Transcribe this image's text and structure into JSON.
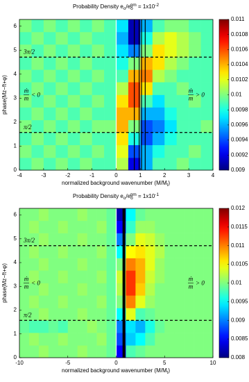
{
  "chart_data": [
    {
      "type": "heatmap",
      "title": [
        "Probability Density e",
        "o",
        "/e",
        "o",
        "gm",
        " = 1x10",
        "-2"
      ],
      "x_label": [
        "normalized background wavenumber (M/M",
        "t",
        ")"
      ],
      "y_label": "phase(Mz−ft+φ)",
      "colormap": "jet",
      "xlim": [
        -4,
        4
      ],
      "xticks": [
        -4,
        -3,
        -2,
        -1,
        0,
        1,
        2,
        3,
        4
      ],
      "ylim": [
        0,
        6.28
      ],
      "yticks": [
        0,
        1,
        2,
        3,
        4,
        5,
        6
      ],
      "clim": [
        0.009,
        0.011
      ],
      "cticks": [
        0.009,
        0.0092,
        0.0094,
        0.0096,
        0.0098,
        0.01,
        0.0102,
        0.0104,
        0.0106,
        0.0108,
        0.011
      ],
      "x_edges": [
        -4,
        -3.5,
        -3,
        -2.5,
        -2,
        -1.5,
        -1,
        -0.5,
        0,
        0.5,
        1,
        1.5,
        2,
        2.5,
        3,
        3.5,
        4
      ],
      "y_edges": [
        0,
        0.52,
        1.05,
        1.57,
        2.09,
        2.62,
        3.14,
        3.67,
        4.19,
        4.71,
        5.24,
        5.76,
        6.28
      ],
      "z": [
        [
          0.0099,
          0.01,
          0.0099,
          0.01,
          0.0099,
          0.01,
          0.0099,
          0.0099,
          0.0101,
          0.0092,
          0.0096,
          0.0099,
          0.0099,
          0.01,
          0.0099,
          0.0099
        ],
        [
          0.01,
          0.0099,
          0.01,
          0.0099,
          0.01,
          0.0099,
          0.01,
          0.0099,
          0.0102,
          0.0094,
          0.0096,
          0.0098,
          0.0099,
          0.0099,
          0.01,
          0.0099
        ],
        [
          0.0099,
          0.01,
          0.0099,
          0.01,
          0.0099,
          0.01,
          0.0099,
          0.0099,
          0.0103,
          0.0098,
          0.0094,
          0.0096,
          0.0098,
          0.0099,
          0.0099,
          0.0099
        ],
        [
          0.01,
          0.0099,
          0.01,
          0.0099,
          0.01,
          0.0099,
          0.01,
          0.01,
          0.0104,
          0.01,
          0.0094,
          0.0095,
          0.0097,
          0.0099,
          0.0099,
          0.01
        ],
        [
          0.0099,
          0.01,
          0.0099,
          0.01,
          0.0099,
          0.01,
          0.0099,
          0.0099,
          0.0104,
          0.0104,
          0.0096,
          0.0096,
          0.0098,
          0.0099,
          0.0099,
          0.0099
        ],
        [
          0.01,
          0.0099,
          0.01,
          0.0099,
          0.01,
          0.0099,
          0.01,
          0.0099,
          0.0103,
          0.0106,
          0.0099,
          0.0097,
          0.0099,
          0.0099,
          0.01,
          0.0099
        ],
        [
          0.0099,
          0.01,
          0.0099,
          0.01,
          0.0099,
          0.01,
          0.0099,
          0.0099,
          0.0101,
          0.0106,
          0.0103,
          0.0099,
          0.0099,
          0.01,
          0.0099,
          0.0099
        ],
        [
          0.01,
          0.0099,
          0.01,
          0.0099,
          0.01,
          0.0099,
          0.01,
          0.0099,
          0.0099,
          0.0104,
          0.0105,
          0.0101,
          0.01,
          0.0099,
          0.0099,
          0.0099
        ],
        [
          0.0099,
          0.01,
          0.0099,
          0.01,
          0.0099,
          0.01,
          0.0099,
          0.0099,
          0.0098,
          0.01,
          0.0104,
          0.0103,
          0.0101,
          0.01,
          0.0099,
          0.0099
        ],
        [
          0.01,
          0.0099,
          0.01,
          0.0099,
          0.01,
          0.0099,
          0.01,
          0.0099,
          0.0097,
          0.0095,
          0.01,
          0.0103,
          0.0102,
          0.0101,
          0.01,
          0.0099
        ],
        [
          0.0099,
          0.01,
          0.0099,
          0.01,
          0.0099,
          0.01,
          0.0099,
          0.0099,
          0.0096,
          0.0091,
          0.0098,
          0.0101,
          0.0102,
          0.0101,
          0.01,
          0.0099
        ],
        [
          0.01,
          0.0099,
          0.01,
          0.0099,
          0.01,
          0.0099,
          0.01,
          0.0099,
          0.0097,
          0.0091,
          0.0096,
          0.0099,
          0.01,
          0.01,
          0.0099,
          0.0099
        ]
      ],
      "vlines": [
        {
          "value": 0,
          "color": "#ffffff"
        },
        {
          "value": 0.75,
          "color": "#000000"
        },
        {
          "value": 0.95,
          "color": "#000000"
        },
        {
          "value": 1.05,
          "color": "#000000"
        },
        {
          "value": 1.2,
          "color": "#000000"
        }
      ],
      "hlines": [
        {
          "value": 4.71,
          "label": "3π/2"
        },
        {
          "value": 1.57,
          "label": "π/2"
        }
      ],
      "annotations": [
        {
          "num": "ṁ",
          "den": "m",
          "rel": "< 0"
        },
        {
          "num": "ṁ",
          "den": "m",
          "rel": "> 0"
        }
      ]
    },
    {
      "type": "heatmap",
      "title": [
        "Probability Density e",
        "o",
        "/e",
        "o",
        "gm",
        " = 1x10",
        "-1"
      ],
      "x_label": [
        "normalized background wavenumber (M/M",
        "t",
        ")"
      ],
      "y_label": "phase(Mz−ft+φ)",
      "colormap": "jet",
      "xlim": [
        -10,
        10
      ],
      "xticks": [
        -10,
        -5,
        0,
        5,
        10
      ],
      "ylim": [
        0,
        6.28
      ],
      "yticks": [
        0,
        1,
        2,
        3,
        4,
        5,
        6
      ],
      "clim": [
        0.008,
        0.012
      ],
      "cticks": [
        0.008,
        0.0085,
        0.009,
        0.0095,
        0.01,
        0.0105,
        0.011,
        0.0115,
        0.012
      ],
      "x_edges": [
        -10,
        -9,
        -8,
        -7,
        -6,
        -5,
        -4,
        -3,
        -2,
        -1,
        0,
        1,
        2,
        3,
        4,
        5,
        6,
        7,
        8,
        9,
        10
      ],
      "y_edges": [
        0,
        0.52,
        1.05,
        1.57,
        2.09,
        2.62,
        3.14,
        3.67,
        4.19,
        4.71,
        5.24,
        5.76,
        6.28
      ],
      "z": [
        [
          0.01,
          0.01,
          0.0101,
          0.01,
          0.01,
          0.01,
          0.0101,
          0.01,
          0.01,
          0.0099,
          0.0085,
          0.0098,
          0.0099,
          0.01,
          0.01,
          0.01,
          0.01,
          0.01,
          0.01,
          0.01
        ],
        [
          0.01,
          0.0101,
          0.01,
          0.01,
          0.0101,
          0.01,
          0.01,
          0.01,
          0.0101,
          0.0099,
          0.0088,
          0.0093,
          0.0095,
          0.0098,
          0.01,
          0.01,
          0.01,
          0.01,
          0.01,
          0.01
        ],
        [
          0.0099,
          0.0098,
          0.0098,
          0.0099,
          0.0098,
          0.01,
          0.01,
          0.0101,
          0.01,
          0.0099,
          0.009,
          0.0094,
          0.0092,
          0.0096,
          0.0099,
          0.01,
          0.01,
          0.01,
          0.01,
          0.01
        ],
        [
          0.01,
          0.01,
          0.0101,
          0.01,
          0.01,
          0.01,
          0.0101,
          0.01,
          0.01,
          0.0099,
          0.0095,
          0.0104,
          0.0098,
          0.0099,
          0.01,
          0.01,
          0.01,
          0.01,
          0.01,
          0.01
        ],
        [
          0.01,
          0.0101,
          0.01,
          0.01,
          0.0101,
          0.01,
          0.01,
          0.01,
          0.0101,
          0.0099,
          0.01,
          0.011,
          0.0104,
          0.0101,
          0.01,
          0.01,
          0.01,
          0.01,
          0.01,
          0.01
        ],
        [
          0.01,
          0.01,
          0.0101,
          0.01,
          0.01,
          0.01,
          0.0101,
          0.01,
          0.01,
          0.0099,
          0.0102,
          0.0113,
          0.0107,
          0.0102,
          0.01,
          0.01,
          0.01,
          0.01,
          0.01,
          0.01
        ],
        [
          0.01,
          0.0101,
          0.01,
          0.01,
          0.0101,
          0.01,
          0.01,
          0.01,
          0.0101,
          0.0099,
          0.0103,
          0.0113,
          0.0108,
          0.0103,
          0.0101,
          0.01,
          0.01,
          0.01,
          0.01,
          0.01
        ],
        [
          0.01,
          0.01,
          0.0101,
          0.01,
          0.01,
          0.01,
          0.0101,
          0.01,
          0.01,
          0.0099,
          0.01,
          0.011,
          0.0108,
          0.0104,
          0.0101,
          0.01,
          0.01,
          0.01,
          0.01,
          0.01
        ],
        [
          0.01,
          0.0101,
          0.01,
          0.01,
          0.0101,
          0.01,
          0.01,
          0.01,
          0.0101,
          0.0099,
          0.0095,
          0.0105,
          0.0106,
          0.0104,
          0.0102,
          0.01,
          0.01,
          0.01,
          0.01,
          0.01
        ],
        [
          0.01,
          0.01,
          0.0101,
          0.01,
          0.01,
          0.01,
          0.0101,
          0.01,
          0.01,
          0.0099,
          0.009,
          0.01,
          0.0104,
          0.0103,
          0.0101,
          0.01,
          0.01,
          0.01,
          0.01,
          0.01
        ],
        [
          0.01,
          0.0101,
          0.01,
          0.01,
          0.0101,
          0.01,
          0.01,
          0.01,
          0.0101,
          0.0099,
          0.0085,
          0.0097,
          0.0101,
          0.0101,
          0.01,
          0.01,
          0.01,
          0.01,
          0.01,
          0.01
        ],
        [
          0.01,
          0.01,
          0.0101,
          0.01,
          0.01,
          0.01,
          0.0101,
          0.01,
          0.01,
          0.0099,
          0.0082,
          0.0095,
          0.0099,
          0.01,
          0.01,
          0.01,
          0.01,
          0.01,
          0.01,
          0.01
        ]
      ],
      "vlines": [
        {
          "value": 0,
          "color": "#ffffff"
        },
        {
          "value": 0.8,
          "color": "#000000"
        }
      ],
      "hlines": [
        {
          "value": 4.71,
          "label": "3π/2"
        },
        {
          "value": 1.57,
          "label": "π/2"
        }
      ],
      "annotations": [
        {
          "num": "ṁ",
          "den": "m",
          "rel": "< 0"
        },
        {
          "num": "ṁ",
          "den": "m",
          "rel": "> 0"
        }
      ]
    }
  ]
}
